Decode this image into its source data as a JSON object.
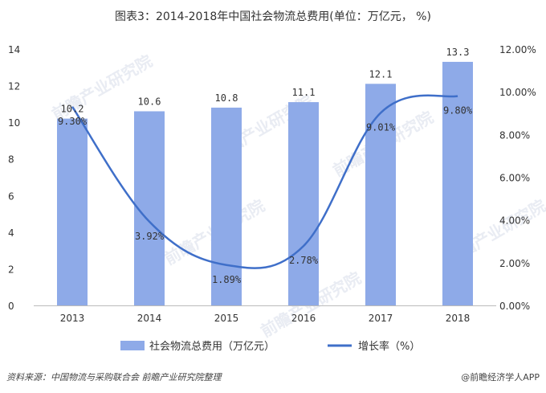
{
  "chart_data": {
    "type": "bar",
    "title": "图表3：2014-2018年中国社会物流总费用(单位：万亿元，  %)",
    "categories": [
      "2013",
      "2014",
      "2015",
      "2016",
      "2017",
      "2018"
    ],
    "series": [
      {
        "name": "社会物流总费用（万亿元）",
        "type": "bar",
        "axis": "left",
        "values": [
          10.2,
          10.6,
          10.8,
          11.1,
          12.1,
          13.3
        ],
        "labels": [
          "10.2",
          "10.6",
          "10.8",
          "11.1",
          "12.1",
          "13.3"
        ],
        "color": "#8eaae8"
      },
      {
        "name": "增长率（%）",
        "type": "line",
        "axis": "right",
        "values": [
          9.3,
          3.92,
          1.89,
          2.78,
          9.01,
          9.8
        ],
        "labels": [
          "9.30%",
          "3.92%",
          "1.89%",
          "2.78%",
          "9.01%",
          "9.80%"
        ],
        "color": "#3f6fc9"
      }
    ],
    "y_left": {
      "ylim": [
        0,
        14
      ],
      "ticks": [
        "0",
        "2",
        "4",
        "6",
        "8",
        "10",
        "12",
        "14"
      ]
    },
    "y_right": {
      "ylim": [
        0,
        12
      ],
      "ticks": [
        "0.00%",
        "2.00%",
        "4.00%",
        "6.00%",
        "8.00%",
        "10.00%",
        "12.00%"
      ]
    },
    "legend_position": "bottom",
    "grid": false
  },
  "footer": {
    "source": "资料来源：中国物流与采购联合会 前瞻产业研究院整理",
    "brand": "@前瞻经济学人APP"
  },
  "watermark": "前瞻产业研究院"
}
